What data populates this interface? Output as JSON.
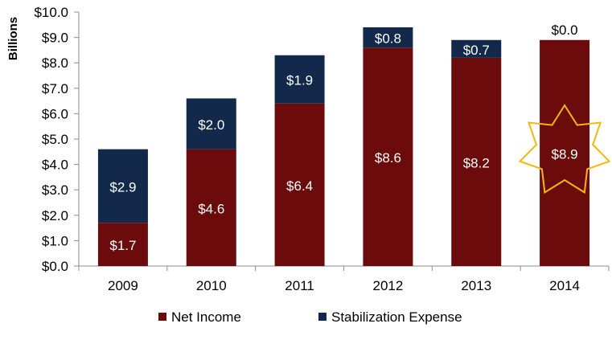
{
  "chart_data": {
    "type": "bar",
    "stacked": true,
    "title": "",
    "xlabel": "",
    "ylabel": "Billions",
    "ylim": [
      0,
      10
    ],
    "ytick_step": 1,
    "ytick_labels": [
      "$0.0",
      "$1.0",
      "$2.0",
      "$3.0",
      "$4.0",
      "$5.0",
      "$6.0",
      "$7.0",
      "$8.0",
      "$9.0",
      "$10.0"
    ],
    "categories": [
      "2009",
      "2010",
      "2011",
      "2012",
      "2013",
      "2014"
    ],
    "series": [
      {
        "name": "Net Income",
        "color": "#6B0B0B",
        "values": [
          1.7,
          4.6,
          6.4,
          8.6,
          8.2,
          8.9
        ],
        "labels": [
          "$1.7",
          "$4.6",
          "$6.4",
          "$8.6",
          "$8.2",
          "$8.9"
        ]
      },
      {
        "name": "Stabilization Expense",
        "color": "#13294B",
        "values": [
          2.9,
          2.0,
          1.9,
          0.8,
          0.7,
          0.0
        ],
        "labels": [
          "$2.9",
          "$2.0",
          "$1.9",
          "$0.8",
          "$0.7",
          "$0.0"
        ]
      }
    ],
    "legend_position": "bottom",
    "grid": false,
    "annotation": {
      "type": "star-highlight",
      "category": "2014",
      "color": "#F2B80F"
    }
  }
}
